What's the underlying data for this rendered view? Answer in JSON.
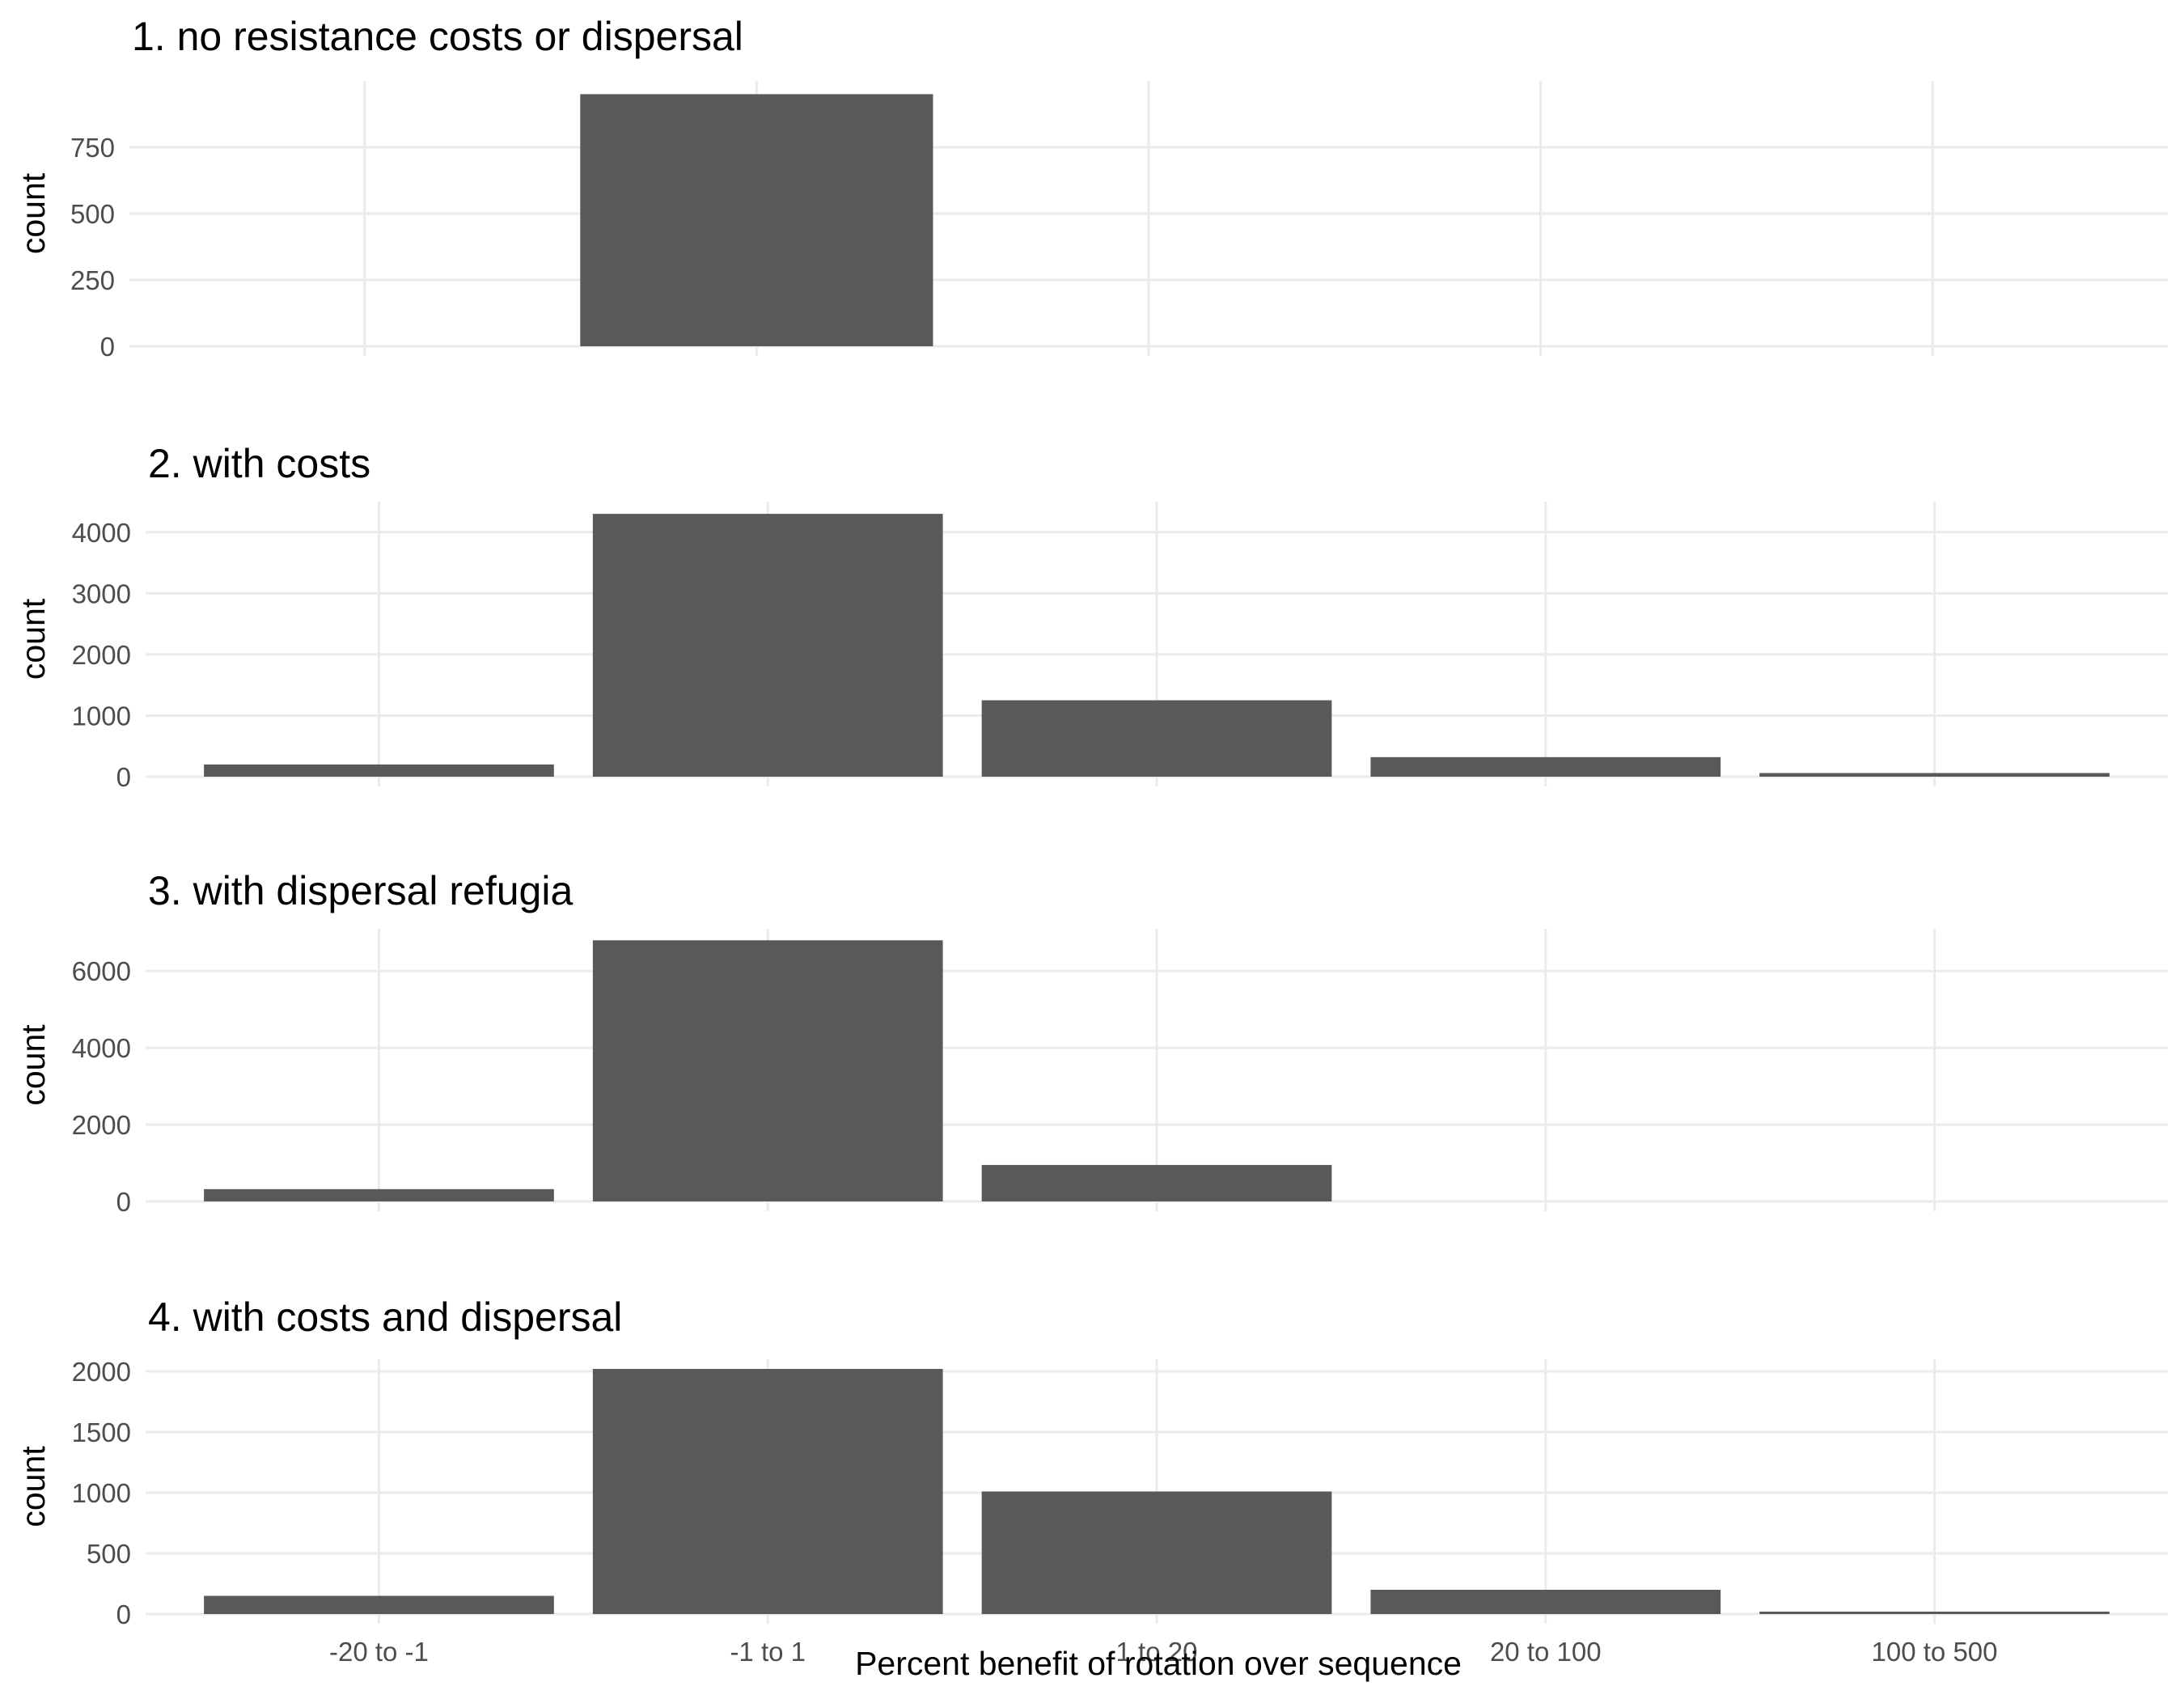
{
  "figure": {
    "xlabel": "Percent benefit of rotation over sequence",
    "bar_color": "#595959",
    "grid_color": "#ebebeb"
  },
  "chart_data": [
    {
      "type": "bar",
      "title": "1. no resistance costs or dispersal",
      "ylabel": "count",
      "categories": [
        "-20 to -1",
        "-1 to 1",
        "1 to 20",
        "20 to 100",
        "100 to 500"
      ],
      "values": [
        0,
        950,
        0,
        0,
        0
      ],
      "yticks": [
        0,
        250,
        500,
        750
      ],
      "ylim": [
        0,
        1000
      ],
      "grid": true,
      "show_x_tick_labels": false
    },
    {
      "type": "bar",
      "title": "2. with costs",
      "ylabel": "count",
      "categories": [
        "-20 to -1",
        "-1 to 1",
        "1 to 20",
        "20 to 100",
        "100 to 500"
      ],
      "values": [
        200,
        4300,
        1250,
        320,
        60
      ],
      "yticks": [
        0,
        1000,
        2000,
        3000,
        4000
      ],
      "ylim": [
        0,
        4500
      ],
      "grid": true,
      "show_x_tick_labels": false
    },
    {
      "type": "bar",
      "title": "3. with dispersal refugia",
      "ylabel": "count",
      "categories": [
        "-20 to -1",
        "-1 to 1",
        "1 to 20",
        "20 to 100",
        "100 to 500"
      ],
      "values": [
        320,
        6800,
        950,
        0,
        0
      ],
      "yticks": [
        0,
        2000,
        4000,
        6000
      ],
      "ylim": [
        0,
        7100
      ],
      "grid": true,
      "show_x_tick_labels": false
    },
    {
      "type": "bar",
      "title": "4. with costs and dispersal",
      "ylabel": "count",
      "categories": [
        "-20 to -1",
        "-1 to 1",
        "1 to 20",
        "20 to 100",
        "100 to 500"
      ],
      "values": [
        150,
        2020,
        1010,
        200,
        20
      ],
      "yticks": [
        0,
        500,
        1000,
        1500,
        2000
      ],
      "ylim": [
        0,
        2100
      ],
      "grid": true,
      "show_x_tick_labels": true
    }
  ]
}
